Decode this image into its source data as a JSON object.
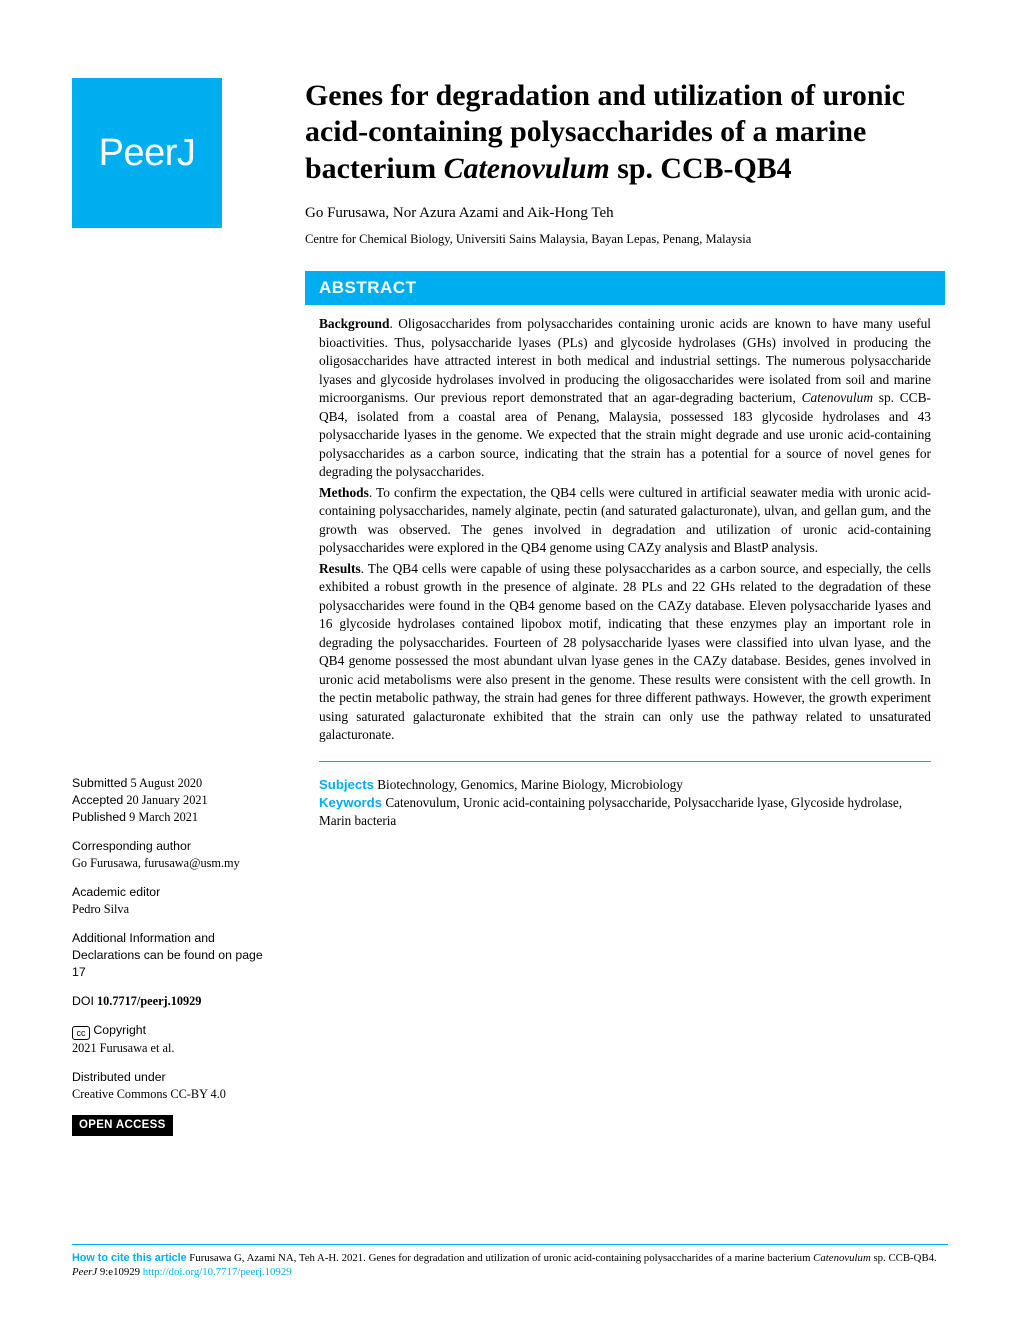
{
  "brand": {
    "logo_text": "PeerJ",
    "accent_color": "#00aeef"
  },
  "article": {
    "title_plain": "Genes for degradation and utilization of uronic acid-containing polysaccharides of a marine bacterium ",
    "title_italic": "Catenovulum",
    "title_tail": " sp. CCB-QB4",
    "authors": "Go Furusawa,  Nor Azura Azami  and  Aik-Hong Teh",
    "affiliation": "Centre for Chemical Biology, Universiti Sains Malaysia, Bayan Lepas, Penang, Malaysia"
  },
  "abstract": {
    "header": "ABSTRACT",
    "background_label": "Background",
    "background_text_1": ". Oligosaccharides from polysaccharides containing uronic acids are known to have many useful bioactivities. Thus, polysaccharide lyases (PLs) and glycoside hydrolases (GHs) involved in producing the oligosaccharides have attracted interest in both medical and industrial settings. The numerous polysaccharide lyases and glycoside hydrolases involved in producing the oligosaccharides were isolated from soil and marine microorganisms. Our previous report demonstrated that an agar-degrading bacterium, ",
    "background_italic": "Catenovulum",
    "background_text_2": " sp. CCB-QB4, isolated from a coastal area of Penang, Malaysia, possessed 183 glycoside hydrolases and 43 polysaccharide lyases in the genome. We expected that the strain might degrade and use uronic acid-containing polysaccharides as a carbon source, indicating that the strain has a potential for a source of novel genes for degrading the polysaccharides.",
    "methods_label": "Methods",
    "methods_text": ". To confirm the expectation, the QB4 cells were cultured in artificial seawater media with uronic acid-containing polysaccharides, namely alginate, pectin (and saturated galacturonate), ulvan, and gellan gum, and the growth was observed. The genes involved in degradation and utilization of uronic acid-containing polysaccharides were explored in the QB4 genome using CAZy analysis and BlastP analysis.",
    "results_label": "Results",
    "results_text": ". The QB4 cells were capable of using these polysaccharides as a carbon source, and especially, the cells exhibited a robust growth in the presence of alginate. 28 PLs and 22 GHs related to the degradation of these polysaccharides were found in the QB4 genome based on the CAZy database. Eleven polysaccharide lyases and 16 glycoside hydrolases contained lipobox motif, indicating that these enzymes play an important role in degrading the polysaccharides. Fourteen of 28 polysaccharide lyases were classified into ulvan lyase, and the QB4 genome possessed the most abundant ulvan lyase genes in the CAZy database. Besides, genes involved in uronic acid metabolisms were also present in the genome. These results were consistent with the cell growth. In the pectin metabolic pathway, the strain had genes for three different pathways. However, the growth experiment using saturated galacturonate exhibited that the strain can only use the pathway related to unsaturated galacturonate."
  },
  "meta": {
    "subjects_label": "Subjects",
    "subjects_text": " Biotechnology, Genomics, Marine Biology, Microbiology",
    "keywords_label": "Keywords",
    "keywords_text": " Catenovulum, Uronic acid-containing polysaccharide, Polysaccharide lyase, Glycoside hydrolase, Marin bacteria"
  },
  "sidebar": {
    "submitted_label": "Submitted",
    "submitted_date": " 5 August 2020",
    "accepted_label": "Accepted",
    "accepted_date": " 20 January 2021",
    "published_label": "Published",
    "published_date": " 9 March 2021",
    "corresponding_label": "Corresponding author",
    "corresponding_value": "Go Furusawa, furusawa@usm.my",
    "editor_label": "Academic editor",
    "editor_value": "Pedro Silva",
    "additional_info": "Additional Information and Declarations can be found on page 17",
    "doi_label": "DOI",
    "doi_value": " 10.7717/peerj.10929",
    "copyright_label": " Copyright",
    "copyright_value": "2021 Furusawa et al.",
    "distributed_label": "Distributed under",
    "distributed_value": "Creative Commons CC-BY 4.0",
    "open_access": "OPEN ACCESS"
  },
  "citation": {
    "howto_label": "How to cite this article",
    "text_1": " Furusawa G, Azami NA, Teh A-H. 2021. Genes for degradation and utilization of uronic acid-containing polysaccharides of a marine bacterium ",
    "text_italic_1": "Catenovulum",
    "text_2": " sp. CCB-QB4. ",
    "text_italic_2": "PeerJ",
    "text_3": " 9:e10929 ",
    "link": "http://doi.org/10.7717/peerj.10929"
  }
}
